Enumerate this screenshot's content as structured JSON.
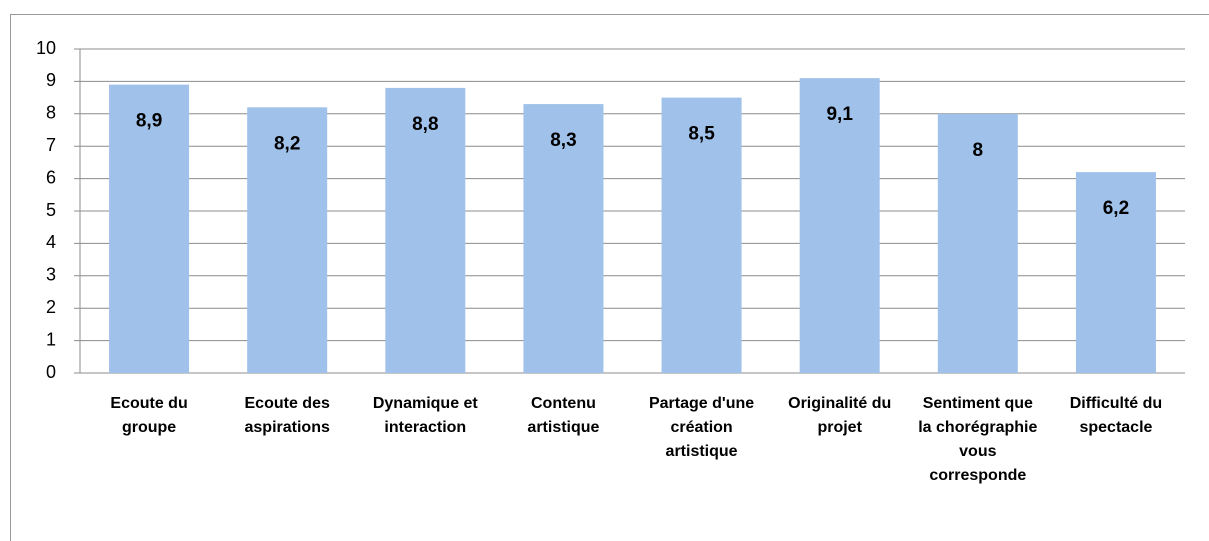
{
  "chart_data": {
    "type": "bar",
    "categories": [
      "Ecoute du groupe",
      "Ecoute des aspirations",
      "Dynamique et interaction",
      "Contenu artistique",
      "Partage d'une création artistique",
      "Originalité du projet",
      "Sentiment que la chorégraphie vous corresponde",
      "Difficulté du spectacle"
    ],
    "values": [
      8.9,
      8.2,
      8.8,
      8.3,
      8.5,
      9.1,
      8,
      6.2
    ],
    "value_labels": [
      "8,9",
      "8,2",
      "8,8",
      "8,3",
      "8,5",
      "9,1",
      "8",
      "6,2"
    ],
    "color": "#a0c1e9",
    "ylim": [
      0,
      10
    ],
    "yticks": [
      0,
      1,
      2,
      3,
      4,
      5,
      6,
      7,
      8,
      9,
      10
    ],
    "grid": true
  }
}
